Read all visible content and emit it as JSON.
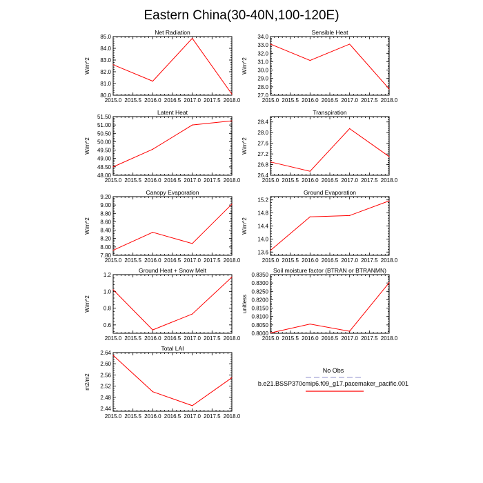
{
  "figure_title": "Eastern China(30-40N,100-120E)",
  "legend": {
    "entries": [
      {
        "label": "No Obs",
        "color": "#a6a6d6",
        "style": "dashed"
      },
      {
        "label": "b.e21.BSSP370cmip6.f09_g17.pacemaker_pacific.001",
        "color": "#ff0000",
        "style": "solid"
      }
    ]
  },
  "chart_data": [
    {
      "type": "line",
      "title": "Net Radiation",
      "xlabel": "",
      "ylabel": "W/m^2",
      "x": [
        2015,
        2016,
        2017,
        2018
      ],
      "values": [
        82.6,
        81.2,
        84.85,
        80.1
      ],
      "xlim": [
        2015,
        2018
      ],
      "ylim": [
        80,
        85
      ],
      "xticks": [
        "2015.0",
        "2015.5",
        "2016.0",
        "2016.5",
        "2017.0",
        "2017.5",
        "2018.0"
      ],
      "yticks": [
        "80.0",
        "81.0",
        "82.0",
        "83.0",
        "84.0",
        "85.0"
      ]
    },
    {
      "type": "line",
      "title": "Sensible Heat",
      "xlabel": "",
      "ylabel": "W/m^2",
      "x": [
        2015,
        2016,
        2017,
        2018
      ],
      "values": [
        33.1,
        31.15,
        33.1,
        27.75
      ],
      "xlim": [
        2015,
        2018
      ],
      "ylim": [
        27,
        34
      ],
      "xticks": [
        "2015.0",
        "2015.5",
        "2016.0",
        "2016.5",
        "2017.0",
        "2017.5",
        "2018.0"
      ],
      "yticks": [
        "27.0",
        "28.0",
        "29.0",
        "30.0",
        "31.0",
        "32.0",
        "33.0",
        "34.0"
      ]
    },
    {
      "type": "line",
      "title": "Latent Heat",
      "xlabel": "",
      "ylabel": "W/m^2",
      "x": [
        2015,
        2016,
        2017,
        2018
      ],
      "values": [
        48.5,
        49.55,
        51.0,
        51.25
      ],
      "xlim": [
        2015,
        2018
      ],
      "ylim": [
        48,
        51.5
      ],
      "xticks": [
        "2015.0",
        "2015.5",
        "2016.0",
        "2016.5",
        "2017.0",
        "2017.5",
        "2018.0"
      ],
      "yticks": [
        "48.00",
        "48.50",
        "49.00",
        "49.50",
        "50.00",
        "50.50",
        "51.00",
        "51.50"
      ]
    },
    {
      "type": "line",
      "title": "Transpiration",
      "xlabel": "",
      "ylabel": "W/m^2",
      "x": [
        2015,
        2016,
        2017,
        2018
      ],
      "values": [
        26.9,
        26.55,
        28.15,
        27.1
      ],
      "xlim": [
        2015,
        2018
      ],
      "ylim": [
        26.4,
        28.6
      ],
      "xticks": [
        "2015.0",
        "2015.5",
        "2016.0",
        "2016.5",
        "2017.0",
        "2017.5",
        "2018.0"
      ],
      "yticks": [
        "26.4",
        "26.8",
        "27.2",
        "27.6",
        "28.0",
        "28.4"
      ]
    },
    {
      "type": "line",
      "title": "Canopy Evaporation",
      "xlabel": "",
      "ylabel": "W/m^2",
      "x": [
        2015,
        2016,
        2017,
        2018
      ],
      "values": [
        7.92,
        8.35,
        8.08,
        9.02
      ],
      "xlim": [
        2015,
        2018
      ],
      "ylim": [
        7.8,
        9.2
      ],
      "xticks": [
        "2015.0",
        "2015.5",
        "2016.0",
        "2016.5",
        "2017.0",
        "2017.5",
        "2018.0"
      ],
      "yticks": [
        "7.80",
        "8.00",
        "8.20",
        "8.40",
        "8.60",
        "8.80",
        "9.00",
        "9.20"
      ]
    },
    {
      "type": "line",
      "title": "Ground Evaporation",
      "xlabel": "",
      "ylabel": "W/m^2",
      "x": [
        2015,
        2016,
        2017,
        2018
      ],
      "values": [
        13.65,
        14.68,
        14.72,
        15.17
      ],
      "xlim": [
        2015,
        2018
      ],
      "ylim": [
        13.5,
        15.3
      ],
      "xticks": [
        "2015.0",
        "2015.5",
        "2016.0",
        "2016.5",
        "2017.0",
        "2017.5",
        "2018.0"
      ],
      "yticks": [
        "13.6",
        "14.0",
        "14.4",
        "14.8",
        "15.2"
      ]
    },
    {
      "type": "line",
      "title": "Ground Heat + Snow Melt",
      "xlabel": "",
      "ylabel": "W/m^2",
      "x": [
        2015,
        2016,
        2017,
        2018
      ],
      "values": [
        1.02,
        0.54,
        0.73,
        1.17
      ],
      "xlim": [
        2015,
        2018
      ],
      "ylim": [
        0.5,
        1.2
      ],
      "xticks": [
        "2015.0",
        "2015.5",
        "2016.0",
        "2016.5",
        "2017.0",
        "2017.5",
        "2018.0"
      ],
      "yticks": [
        "0.6",
        "0.8",
        "1.0",
        "1.2"
      ]
    },
    {
      "type": "line",
      "title": "Soil moisture factor (BTRAN or BTRANMN)",
      "xlabel": "",
      "ylabel": "unitless",
      "x": [
        2015,
        2016,
        2017,
        2018
      ],
      "values": [
        0.8002,
        0.8055,
        0.8012,
        0.8302
      ],
      "xlim": [
        2015,
        2018
      ],
      "ylim": [
        0.8,
        0.835
      ],
      "xticks": [
        "2015.0",
        "2015.5",
        "2016.0",
        "2016.5",
        "2017.0",
        "2017.5",
        "2018.0"
      ],
      "yticks": [
        "0.8000",
        "0.8050",
        "0.8100",
        "0.8150",
        "0.8200",
        "0.8250",
        "0.8300",
        "0.8350"
      ]
    },
    {
      "type": "line",
      "title": "Total LAI",
      "xlabel": "",
      "ylabel": "m2/m2",
      "x": [
        2015,
        2016,
        2017,
        2018
      ],
      "values": [
        2.63,
        2.5,
        2.45,
        2.55
      ],
      "xlim": [
        2015,
        2018
      ],
      "ylim": [
        2.43,
        2.64
      ],
      "xticks": [
        "2015.0",
        "2015.5",
        "2016.0",
        "2016.5",
        "2017.0",
        "2017.5",
        "2018.0"
      ],
      "yticks": [
        "2.44",
        "2.48",
        "2.52",
        "2.56",
        "2.60",
        "2.64"
      ]
    }
  ]
}
